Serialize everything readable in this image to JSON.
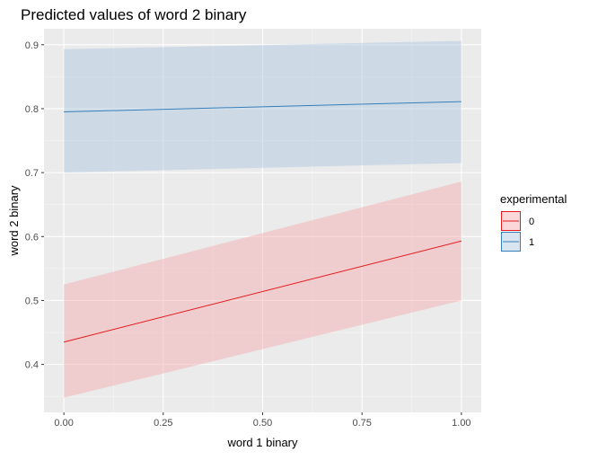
{
  "chart_data": {
    "type": "line",
    "title": "Predicted values of word 2 binary",
    "xlabel": "word 1 binary",
    "ylabel": "word 2 binary",
    "xlim": [
      -0.05,
      1.05
    ],
    "ylim": [
      0.325,
      0.925
    ],
    "x_ticks": [
      0,
      0.25,
      0.5,
      0.75,
      1
    ],
    "x_tick_labels": [
      "0.00",
      "0.25",
      "0.50",
      "0.75",
      "1.00"
    ],
    "y_ticks": [
      0.4,
      0.5,
      0.6,
      0.7,
      0.8,
      0.9
    ],
    "y_tick_labels": [
      "0.4",
      "0.5",
      "0.6",
      "0.7",
      "0.8",
      "0.9"
    ],
    "grid": true,
    "legend": {
      "title": "experimental",
      "position": "right"
    },
    "series": [
      {
        "name": "0",
        "color": "#e41a1c",
        "band_color": "#f4a6a8",
        "x": [
          0,
          1
        ],
        "y": [
          0.435,
          0.593
        ],
        "lower": [
          0.348,
          0.5
        ],
        "upper": [
          0.525,
          0.686
        ]
      },
      {
        "name": "1",
        "color": "#377eb8",
        "band_color": "#a9c6e0",
        "x": [
          0,
          1
        ],
        "y": [
          0.795,
          0.811
        ],
        "lower": [
          0.7,
          0.715
        ],
        "upper": [
          0.893,
          0.906
        ]
      }
    ]
  }
}
